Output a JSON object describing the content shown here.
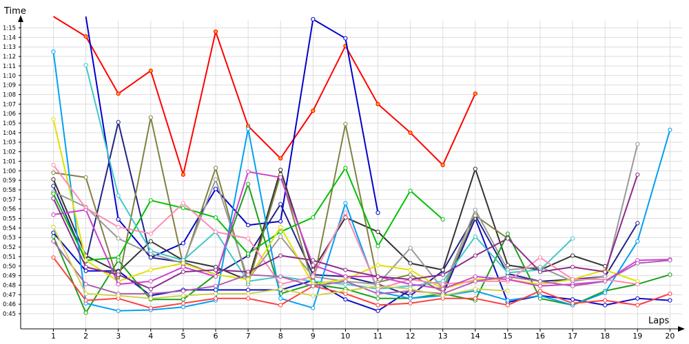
{
  "chart_data": {
    "type": "line",
    "ylabel": "Time",
    "xlabel": "Laps",
    "x": [
      1,
      2,
      3,
      4,
      5,
      6,
      7,
      8,
      9,
      10,
      11,
      12,
      13,
      14,
      15,
      16,
      17,
      18,
      19,
      20
    ],
    "x_tick_labels": [
      "1",
      "2",
      "3",
      "4",
      "5",
      "6",
      "7",
      "8",
      "9",
      "10",
      "11",
      "12",
      "13",
      "14",
      "15",
      "16",
      "17",
      "18",
      "19",
      "20"
    ],
    "y_unit": "seconds",
    "ylim": [
      43,
      80
    ],
    "y_ticks": [
      45,
      46,
      47,
      48,
      49,
      50,
      51,
      52,
      53,
      54,
      55,
      56,
      57,
      58,
      59,
      60,
      61,
      62,
      63,
      64,
      65,
      66,
      67,
      68,
      69,
      70,
      71,
      72,
      73,
      74,
      75
    ],
    "y_tick_labels": [
      "0:45",
      "0:46",
      "0:47",
      "0:48",
      "0:49",
      "0:50",
      "0:51",
      "0:52",
      "0:53",
      "0:54",
      "0:55",
      "0:56",
      "0:57",
      "0:58",
      "0:59",
      "1:00",
      "1:01",
      "1:02",
      "1:03",
      "1:04",
      "1:05",
      "1:06",
      "1:07",
      "1:08",
      "1:09",
      "1:10",
      "1:11",
      "1:12",
      "1:13",
      "1:14",
      "1:15"
    ],
    "grid": true,
    "series": [
      {
        "color": "#ff0000",
        "point_fill": "#ffa500",
        "values": [
          76.2,
          74.1,
          68.1,
          70.5,
          59.6,
          74.6,
          64.7,
          61.3,
          66.3,
          73.1,
          67.0,
          64.0,
          60.6,
          68.1,
          null,
          null,
          null,
          null,
          null,
          null
        ]
      },
      {
        "color": "#0000cd",
        "point_fill": "#ffffff",
        "values": [
          null,
          80.0,
          54.9,
          50.9,
          52.4,
          58.1,
          54.3,
          54.7,
          75.9,
          73.9,
          55.6,
          null,
          null,
          null,
          null,
          null,
          null,
          null,
          null,
          null
        ]
      },
      {
        "color": "#0a0ac8",
        "point_fill": "#ffffff",
        "values": [
          53.5,
          49.5,
          49.5,
          46.9,
          47.5,
          47.5,
          47.5,
          47.5,
          48.5,
          46.5,
          45.3,
          47.5,
          47.0,
          55.0,
          46.2,
          46.9,
          46.5,
          45.9,
          46.6,
          46.4
        ]
      },
      {
        "color": "#222288",
        "point_fill": "#ffffff",
        "values": [
          58.4,
          50.5,
          65.1,
          50.9,
          50.4,
          49.1,
          51.1,
          56.5,
          49.1,
          48.9,
          48.1,
          46.9,
          49.5,
          55.3,
          49.2,
          48.4,
          48.6,
          48.9,
          54.5,
          null
        ]
      },
      {
        "color": "#333333",
        "point_fill": "#ffffff",
        "values": [
          59.1,
          51.1,
          49.4,
          52.6,
          50.6,
          49.9,
          48.5,
          60.1,
          49.6,
          55.1,
          53.6,
          50.3,
          49.6,
          60.2,
          50.1,
          49.6,
          51.1,
          50.0,
          null,
          null
        ]
      },
      {
        "color": "#808040",
        "point_fill": "#ffffff",
        "values": [
          59.8,
          59.3,
          48.3,
          65.6,
          50.1,
          60.3,
          48.1,
          59.6,
          48.1,
          64.9,
          48.3,
          49.1,
          47.3,
          55.3,
          52.9,
          null,
          null,
          null,
          null,
          null
        ]
      },
      {
        "color": "#999999",
        "point_fill": "#ffffff",
        "values": [
          57.8,
          56.2,
          52.9,
          51.3,
          50.3,
          59.1,
          48.6,
          53.1,
          48.9,
          48.4,
          48.1,
          51.9,
          47.6,
          55.9,
          49.6,
          49.9,
          48.4,
          48.9,
          62.8,
          null
        ]
      },
      {
        "color": "#00c000",
        "point_fill": "#ffffff",
        "values": [
          57.6,
          50.6,
          50.9,
          56.9,
          56.1,
          55.1,
          51.3,
          53.6,
          55.1,
          60.3,
          52.1,
          57.9,
          54.9,
          null,
          null,
          null,
          null,
          null,
          null,
          null
        ]
      },
      {
        "color": "#1aa01a",
        "point_fill": "#ffffff",
        "values": [
          53.1,
          45.1,
          50.6,
          46.5,
          46.5,
          49.1,
          58.6,
          47.1,
          48.1,
          47.6,
          46.6,
          46.6,
          47.1,
          46.4,
          53.4,
          46.6,
          45.9,
          47.4,
          48.1,
          49.1
        ]
      },
      {
        "color": "#00a0f0",
        "point_fill": "#ffffff",
        "values": [
          72.5,
          46.1,
          45.3,
          45.4,
          45.7,
          46.4,
          64.4,
          46.6,
          45.6,
          56.6,
          47.3,
          46.6,
          46.9,
          47.4,
          46.4,
          46.9,
          45.9,
          47.2,
          52.6,
          64.3
        ]
      },
      {
        "color": "#40c8c8",
        "point_fill": "#ffffff",
        "values": [
          null,
          71.1,
          57.4,
          51.6,
          50.6,
          53.6,
          48.4,
          48.9,
          48.4,
          48.1,
          47.6,
          47.9,
          48.4,
          53.1,
          49.3,
          49.6,
          52.9,
          null,
          null,
          null
        ]
      },
      {
        "color": "#e0e000",
        "point_fill": "#ffffff",
        "values": [
          65.4,
          50.6,
          48.4,
          49.6,
          50.3,
          49.1,
          48.6,
          54.1,
          48.1,
          48.6,
          50.1,
          49.6,
          47.6,
          48.6,
          48.6,
          48.1,
          48.6,
          49.6,
          48.4,
          null
        ]
      },
      {
        "color": "#ff8ab4",
        "point_fill": "#ffffff",
        "values": [
          60.6,
          56.1,
          54.1,
          53.4,
          56.6,
          53.6,
          52.9,
          48.1,
          48.9,
          55.6,
          47.6,
          48.6,
          48.1,
          48.4,
          48.4,
          50.9,
          48.6,
          48.6,
          48.1,
          null
        ]
      },
      {
        "color": "#d040d0",
        "point_fill": "#ffffff",
        "values": [
          55.4,
          55.9,
          48.1,
          48.4,
          49.9,
          48.9,
          59.9,
          59.3,
          50.1,
          48.9,
          48.9,
          48.1,
          47.6,
          48.9,
          48.6,
          47.9,
          48.1,
          48.4,
          50.6,
          50.7
        ]
      },
      {
        "color": "#8a2a8a",
        "point_fill": "#ffffff",
        "values": [
          57.1,
          49.9,
          49.1,
          47.6,
          49.4,
          49.6,
          49.4,
          51.1,
          50.6,
          49.6,
          48.9,
          48.6,
          49.1,
          51.1,
          52.9,
          49.4,
          49.9,
          49.4,
          59.6,
          null
        ]
      },
      {
        "color": "#ff4040",
        "point_fill": "#ffffff",
        "values": [
          50.9,
          46.4,
          46.6,
          45.6,
          46.1,
          46.6,
          46.6,
          45.9,
          47.9,
          47.1,
          45.9,
          46.1,
          46.6,
          46.6,
          45.9,
          47.4,
          46.1,
          46.4,
          45.9,
          47.1
        ]
      },
      {
        "color": "#b060b0",
        "point_fill": "#ffffff",
        "values": [
          52.6,
          48.1,
          47.1,
          47.1,
          47.4,
          47.9,
          49.1,
          48.9,
          47.9,
          48.4,
          47.1,
          47.4,
          47.1,
          48.4,
          48.9,
          48.4,
          47.9,
          48.4,
          50.3,
          50.6
        ]
      },
      {
        "color": "#d0d050",
        "point_fill": "#ffffff",
        "values": [
          54.1,
          47.1,
          46.9,
          46.6,
          46.9,
          47.1,
          47.1,
          47.6,
          46.9,
          47.4,
          47.9,
          47.6,
          46.9,
          47.6,
          47.4,
          null,
          null,
          null,
          null,
          null
        ]
      }
    ]
  }
}
